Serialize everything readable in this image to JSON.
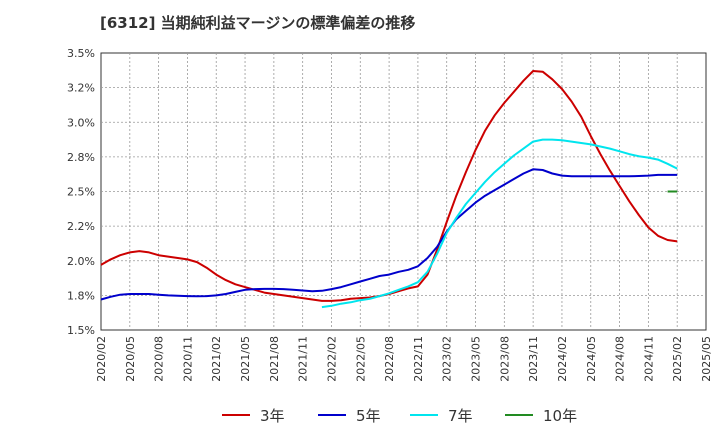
{
  "header": {
    "title": "[6312]  当期純利益マージンの標準偏差の推移"
  },
  "chart_data": {
    "type": "line",
    "title": "[6312]  当期純利益マージンの標準偏差の推移",
    "xlabel": "",
    "ylabel": "",
    "ylim": [
      1.5,
      3.5
    ],
    "y_ticks": [
      "1.5%",
      "1.8%",
      "2.0%",
      "2.2%",
      "2.5%",
      "2.8%",
      "3.0%",
      "3.2%",
      "3.5%"
    ],
    "x_ticks": [
      "2020/02",
      "2020/05",
      "2020/08",
      "2020/11",
      "2021/02",
      "2021/05",
      "2021/08",
      "2021/11",
      "2022/02",
      "2022/05",
      "2022/08",
      "2022/11",
      "2023/02",
      "2023/05",
      "2023/08",
      "2023/11",
      "2024/02",
      "2024/05",
      "2024/08",
      "2024/11",
      "2025/02",
      "2025/05"
    ],
    "grid": true,
    "legend_position": "bottom",
    "series": [
      {
        "name": "3年",
        "color": "#cc0000",
        "x": [
          "2020/02",
          "2020/03",
          "2020/04",
          "2020/05",
          "2020/06",
          "2020/07",
          "2020/08",
          "2020/09",
          "2020/10",
          "2020/11",
          "2020/12",
          "2021/01",
          "2021/02",
          "2021/03",
          "2021/04",
          "2021/05",
          "2021/06",
          "2021/07",
          "2021/08",
          "2021/09",
          "2021/10",
          "2021/11",
          "2021/12",
          "2022/01",
          "2022/02",
          "2022/03",
          "2022/04",
          "2022/05",
          "2022/06",
          "2022/07",
          "2022/08",
          "2022/09",
          "2022/10",
          "2022/11",
          "2022/12",
          "2023/01",
          "2023/02",
          "2023/03",
          "2023/04",
          "2023/05",
          "2023/06",
          "2023/07",
          "2023/08",
          "2023/09",
          "2023/10",
          "2023/11",
          "2023/12",
          "2024/01",
          "2024/02",
          "2024/03",
          "2024/04",
          "2024/05",
          "2024/06",
          "2024/07",
          "2024/08",
          "2024/09",
          "2024/10",
          "2024/11",
          "2024/12",
          "2025/01",
          "2025/02"
        ],
        "values": [
          1.97,
          2.01,
          2.04,
          2.06,
          2.07,
          2.06,
          2.04,
          2.03,
          2.02,
          2.01,
          1.99,
          1.95,
          1.9,
          1.86,
          1.83,
          1.81,
          1.79,
          1.77,
          1.76,
          1.75,
          1.74,
          1.73,
          1.72,
          1.71,
          1.71,
          1.715,
          1.725,
          1.73,
          1.735,
          1.745,
          1.76,
          1.78,
          1.8,
          1.815,
          1.9,
          2.08,
          2.28,
          2.47,
          2.64,
          2.8,
          2.94,
          3.05,
          3.14,
          3.22,
          3.3,
          3.37,
          3.365,
          3.31,
          3.24,
          3.15,
          3.04,
          2.9,
          2.77,
          2.65,
          2.54,
          2.43,
          2.33,
          2.24,
          2.18,
          2.15,
          2.14
        ]
      },
      {
        "name": "5年",
        "color": "#0000cc",
        "x": [
          "2020/02",
          "2020/03",
          "2020/04",
          "2020/05",
          "2020/06",
          "2020/07",
          "2020/08",
          "2020/09",
          "2020/10",
          "2020/11",
          "2020/12",
          "2021/01",
          "2021/02",
          "2021/03",
          "2021/04",
          "2021/05",
          "2021/06",
          "2021/07",
          "2021/08",
          "2021/09",
          "2021/10",
          "2021/11",
          "2021/12",
          "2022/01",
          "2022/02",
          "2022/03",
          "2022/04",
          "2022/05",
          "2022/06",
          "2022/07",
          "2022/08",
          "2022/09",
          "2022/10",
          "2022/11",
          "2022/12",
          "2023/01",
          "2023/02",
          "2023/03",
          "2023/04",
          "2023/05",
          "2023/06",
          "2023/07",
          "2023/08",
          "2023/09",
          "2023/10",
          "2023/11",
          "2023/12",
          "2024/01",
          "2024/02",
          "2024/03",
          "2024/04",
          "2024/05",
          "2024/06",
          "2024/07",
          "2024/08",
          "2024/09",
          "2024/10",
          "2024/11",
          "2024/12",
          "2025/01",
          "2025/02"
        ],
        "values": [
          1.72,
          1.74,
          1.755,
          1.76,
          1.76,
          1.76,
          1.755,
          1.75,
          1.747,
          1.745,
          1.744,
          1.745,
          1.75,
          1.76,
          1.775,
          1.79,
          1.795,
          1.797,
          1.797,
          1.795,
          1.79,
          1.785,
          1.78,
          1.783,
          1.795,
          1.81,
          1.83,
          1.85,
          1.87,
          1.89,
          1.9,
          1.92,
          1.935,
          1.96,
          2.02,
          2.1,
          2.21,
          2.3,
          2.36,
          2.42,
          2.47,
          2.51,
          2.55,
          2.59,
          2.63,
          2.66,
          2.655,
          2.63,
          2.615,
          2.61,
          2.61,
          2.61,
          2.61,
          2.61,
          2.61,
          2.61,
          2.612,
          2.615,
          2.62,
          2.62,
          2.62
        ]
      },
      {
        "name": "7年",
        "color": "#00e5ee",
        "x": [
          "2022/01",
          "2022/02",
          "2022/03",
          "2022/04",
          "2022/05",
          "2022/06",
          "2022/07",
          "2022/08",
          "2022/09",
          "2022/10",
          "2022/11",
          "2022/12",
          "2023/01",
          "2023/02",
          "2023/03",
          "2023/04",
          "2023/05",
          "2023/06",
          "2023/07",
          "2023/08",
          "2023/09",
          "2023/10",
          "2023/11",
          "2023/12",
          "2024/01",
          "2024/02",
          "2024/03",
          "2024/04",
          "2024/05",
          "2024/06",
          "2024/07",
          "2024/08",
          "2024/09",
          "2024/10",
          "2024/11",
          "2024/12",
          "2025/01",
          "2025/02"
        ],
        "values": [
          1.665,
          1.675,
          1.69,
          1.7,
          1.715,
          1.725,
          1.745,
          1.765,
          1.79,
          1.815,
          1.845,
          1.92,
          2.05,
          2.2,
          2.31,
          2.41,
          2.49,
          2.57,
          2.64,
          2.7,
          2.76,
          2.81,
          2.86,
          2.875,
          2.875,
          2.87,
          2.86,
          2.85,
          2.84,
          2.825,
          2.81,
          2.79,
          2.77,
          2.755,
          2.745,
          2.73,
          2.7,
          2.665
        ]
      },
      {
        "name": "10年",
        "color": "#228b22",
        "x": [
          "2025/01",
          "2025/02"
        ],
        "values": [
          2.5,
          2.5
        ]
      }
    ]
  }
}
